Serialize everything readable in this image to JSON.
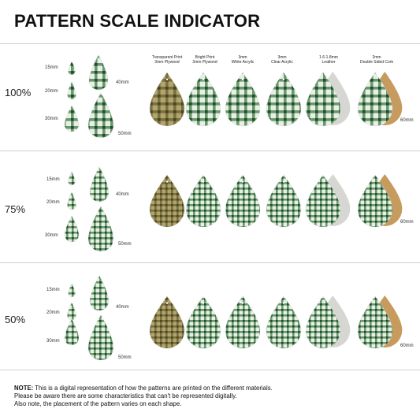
{
  "title": "PATTERN SCALE INDICATOR",
  "materials": [
    "Transparent Print\n3mm Plywood",
    "Bright Print\n3mm Plywood",
    "3mm\nWhite Acrylic",
    "3mm\nClear Acrylic",
    "1.6-1.8mm\nLeather",
    "2mm\nDouble Sided Cork"
  ],
  "sizes": {
    "s15": "15mm",
    "s20": "20mm",
    "s30": "30mm",
    "s40": "40mm",
    "s50": "50mm",
    "s60": "60mm"
  },
  "scales": [
    "100%",
    "75%",
    "50%"
  ],
  "note": {
    "label": "NOTE:",
    "line1": "This is a digital representation of how the patterns are printed on the different materials.",
    "line2": "Please be aware there are some characteristics that can't be represented digitally.",
    "line3": "Also note, the placement of the pattern varies on each shape."
  },
  "colors": {
    "gingham_green": "#2f6b36",
    "gingham_light": "#e9efe6",
    "plywood": "#8a7a45",
    "leather": "#d6d6d2",
    "cork": "#c79a5e"
  }
}
